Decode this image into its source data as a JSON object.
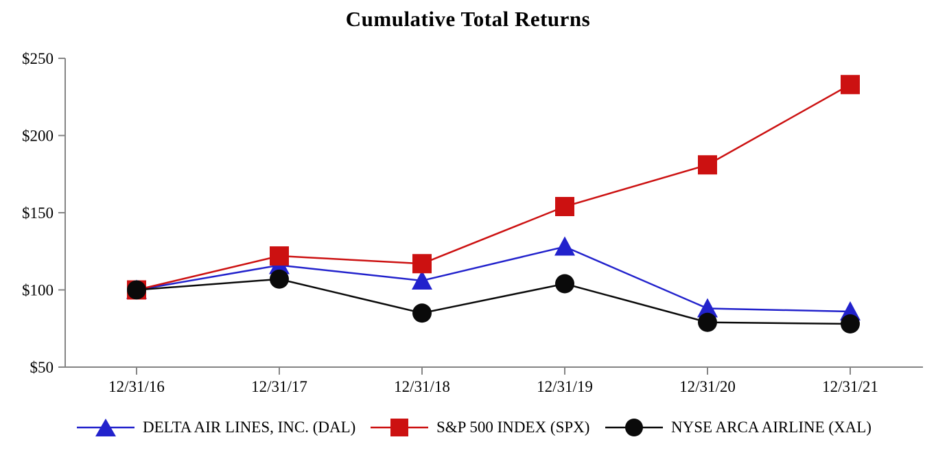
{
  "chart_data": {
    "type": "line",
    "title": "Cumulative Total Returns",
    "categories": [
      "12/31/16",
      "12/31/17",
      "12/31/18",
      "12/31/19",
      "12/31/20",
      "12/31/21"
    ],
    "series": [
      {
        "name": "DELTA AIR LINES, INC. (DAL)",
        "marker": "triangle",
        "color": "#2222CC",
        "values": [
          100,
          116,
          106,
          128,
          88,
          86
        ]
      },
      {
        "name": "S&P 500 INDEX (SPX)",
        "marker": "square",
        "color": "#CC1111",
        "values": [
          100,
          122,
          117,
          154,
          181,
          233
        ]
      },
      {
        "name": "NYSE ARCA AIRLINE (XAL)",
        "marker": "circle",
        "color": "#0A0A0A",
        "values": [
          100,
          107,
          85,
          104,
          79,
          78
        ]
      }
    ],
    "ylim": [
      50,
      250
    ],
    "ytick_values": [
      50,
      100,
      150,
      200,
      250
    ],
    "ytick_labels": [
      "$50",
      "$100",
      "$150",
      "$200",
      "$250"
    ],
    "xlabel": "",
    "ylabel": "",
    "grid": false,
    "legend_position": "bottom",
    "axis_color": "#848484"
  }
}
